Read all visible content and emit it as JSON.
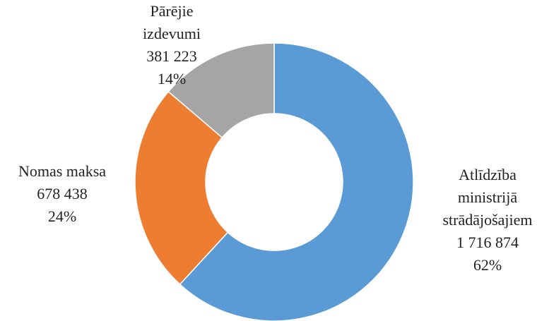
{
  "chart_data": {
    "type": "donut",
    "categories": [
      [
        "Atlīdzība",
        "ministrijā",
        "strādājošajiem"
      ],
      [
        "Nomas maksa"
      ],
      [
        "Pārējie",
        "izdevumi"
      ]
    ],
    "values": [
      1716874,
      678438,
      381223
    ],
    "value_labels": [
      "1 716 874",
      "678 438",
      "381 223"
    ],
    "percentage_labels": [
      "62%",
      "24%",
      "14%"
    ],
    "colors": [
      "#5b9bd5",
      "#ed7d31",
      "#a5a5a5"
    ]
  }
}
